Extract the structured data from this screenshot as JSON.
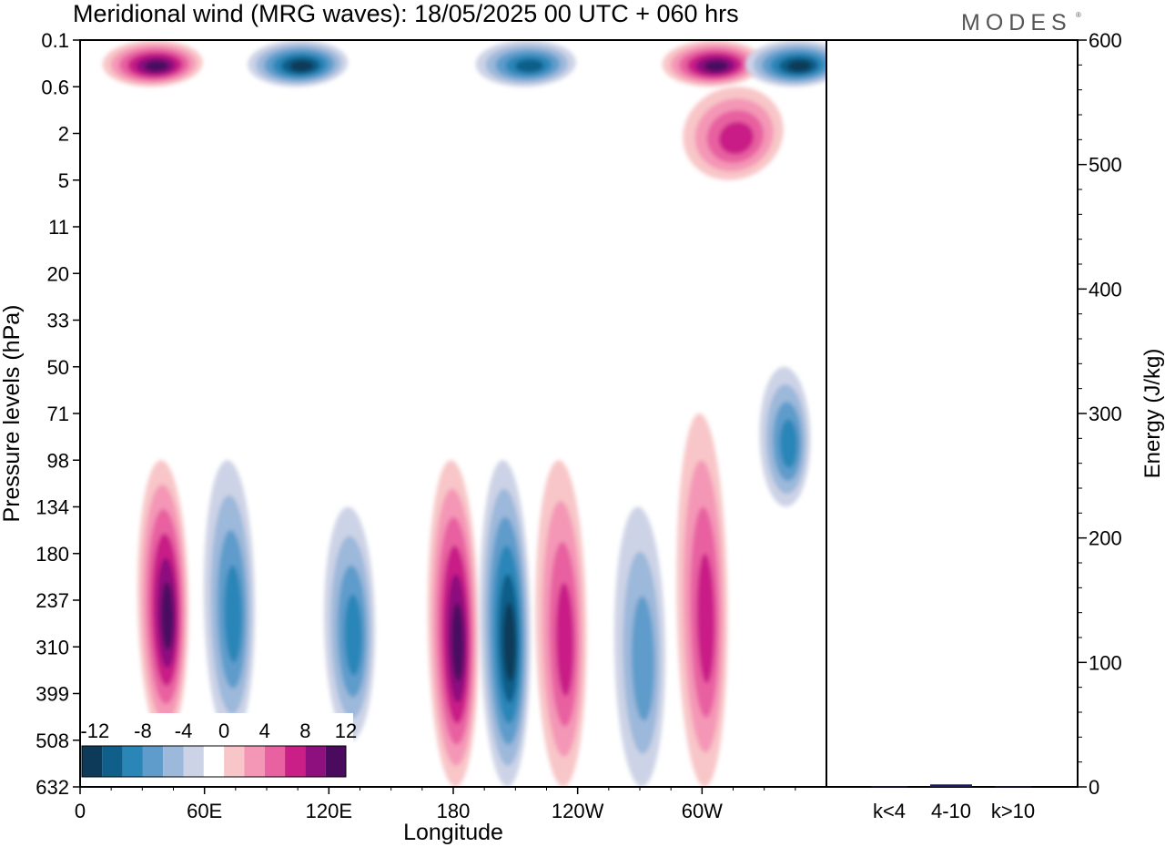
{
  "title": "Meridional wind (MRG waves):  18/05/2025  00 UTC  + 060 hrs",
  "logo": "MODES",
  "chart_data": [
    {
      "type": "heatmap",
      "title": "Meridional wind (MRG waves):  18/05/2025  00 UTC  + 060 hrs",
      "xlabel": "Longitude",
      "ylabel": "Pressure levels (hPa)",
      "x_ticks": [
        "0",
        "60E",
        "120E",
        "180",
        "120W",
        "60W"
      ],
      "x_tick_values": [
        0,
        60,
        120,
        180,
        240,
        300
      ],
      "xlim": [
        0,
        360
      ],
      "y_ticks": [
        "0.1",
        "0.6",
        "2",
        "5",
        "11",
        "20",
        "33",
        "50",
        "71",
        "98",
        "134",
        "180",
        "237",
        "310",
        "399",
        "508",
        "632"
      ],
      "y_scale": "pressure levels",
      "colorbar": {
        "labels": [
          "-12",
          "-8",
          "-4",
          "0",
          "4",
          "8",
          "12"
        ],
        "levels": [
          -14,
          -12,
          -10,
          -8,
          -6,
          -4,
          -2,
          2,
          4,
          6,
          8,
          10,
          12,
          14
        ],
        "colors": [
          "#0d3a58",
          "#0f5f8a",
          "#2b86b8",
          "#5f9ccb",
          "#9cb8da",
          "#cdd3e6",
          "#ffffff",
          "#f8c6c8",
          "#f497b6",
          "#e861a0",
          "#c91f87",
          "#8e0f7e",
          "#4a0a5e"
        ]
      },
      "features": [
        {
          "sign": "positive",
          "lon": 40,
          "p_top": 98,
          "p_bottom": 508,
          "peak": 12
        },
        {
          "sign": "negative",
          "lon": 72,
          "p_top": 98,
          "p_bottom": 508,
          "peak": -8
        },
        {
          "sign": "negative",
          "lon": 130,
          "p_top": 134,
          "p_bottom": 508,
          "peak": -8
        },
        {
          "sign": "positive",
          "lon": 180,
          "p_top": 98,
          "p_bottom": 632,
          "peak": 12
        },
        {
          "sign": "negative",
          "lon": 205,
          "p_top": 98,
          "p_bottom": 632,
          "peak": -12
        },
        {
          "sign": "positive",
          "lon": 232,
          "p_top": 98,
          "p_bottom": 632,
          "peak": 8
        },
        {
          "sign": "negative",
          "lon": 270,
          "p_top": 134,
          "p_bottom": 632,
          "peak": -6
        },
        {
          "sign": "positive",
          "lon": 300,
          "p_top": 71,
          "p_bottom": 632,
          "peak": 8
        },
        {
          "sign": "negative",
          "lon": 340,
          "p_top": 50,
          "p_bottom": 134,
          "peak": -8
        },
        {
          "sign": "positive",
          "lon": 35,
          "p_top": 0.1,
          "p_bottom": 0.6,
          "peak": 14
        },
        {
          "sign": "negative",
          "lon": 105,
          "p_top": 0.1,
          "p_bottom": 0.6,
          "peak": -12
        },
        {
          "sign": "negative",
          "lon": 215,
          "p_top": 0.1,
          "p_bottom": 0.6,
          "peak": -10
        },
        {
          "sign": "positive",
          "lon": 305,
          "p_top": 0.1,
          "p_bottom": 0.6,
          "peak": 14
        },
        {
          "sign": "negative",
          "lon": 345,
          "p_top": 0.1,
          "p_bottom": 0.6,
          "peak": -14
        },
        {
          "sign": "positive",
          "lon": 315,
          "p_top": 0.6,
          "p_bottom": 5,
          "peak": 8
        }
      ]
    },
    {
      "type": "bar",
      "categories": [
        "k<4",
        "4-10",
        "k>10"
      ],
      "values": [
        0.5,
        2,
        0.5
      ],
      "ylabel": "Energy (J/kg)",
      "ylim": [
        0,
        600
      ],
      "y_ticks": [
        0,
        100,
        200,
        300,
        400,
        500,
        600
      ],
      "bar_color": "#1a1a5e"
    }
  ]
}
